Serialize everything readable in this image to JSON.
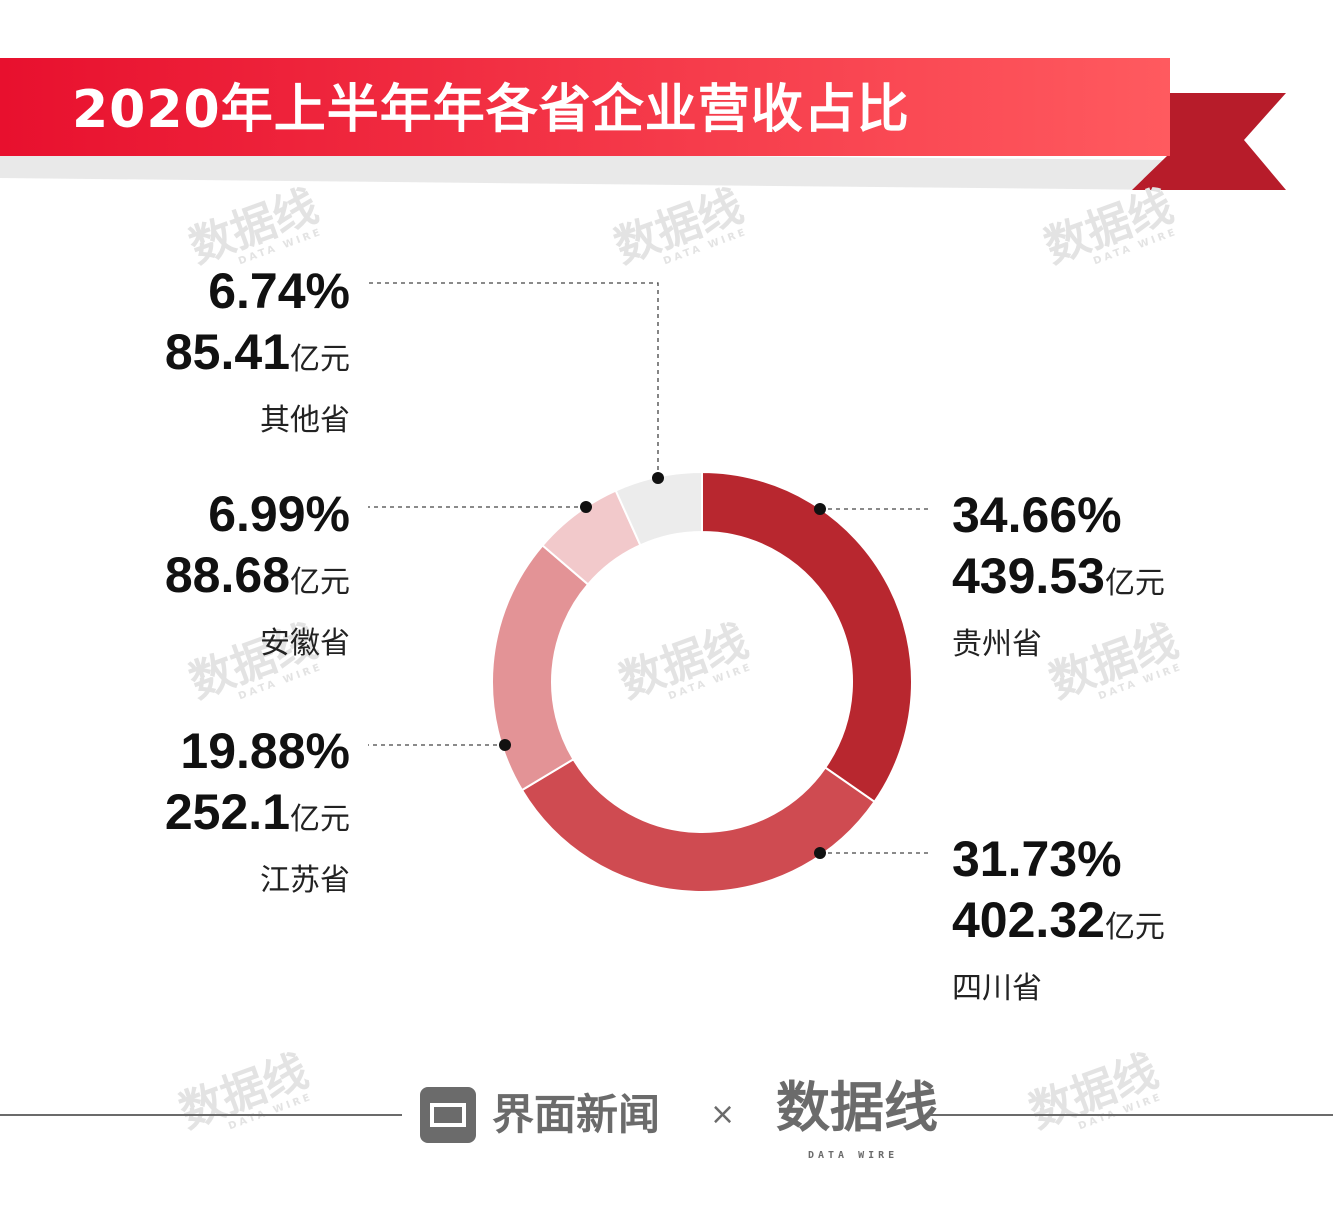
{
  "header": {
    "title": "2020年上半年年各省企业营收占比",
    "colors": {
      "banner_start": "#e8102e",
      "banner_end": "#ff5a5f",
      "ribbon": "#b71c2a",
      "shadow": "#e6e6e6"
    }
  },
  "chart_data": {
    "type": "pie",
    "style": "donut",
    "title": "2020年上半年年各省企业营收占比",
    "unit": "亿元",
    "slices": [
      {
        "name": "贵州省",
        "percent": 34.66,
        "value": 439.53,
        "percent_label": "34.66%",
        "value_label": "439.53",
        "color": "#b8272f"
      },
      {
        "name": "四川省",
        "percent": 31.73,
        "value": 402.32,
        "percent_label": "31.73%",
        "value_label": "402.32",
        "color": "#cf4b51"
      },
      {
        "name": "江苏省",
        "percent": 19.88,
        "value": 252.1,
        "percent_label": "19.88%",
        "value_label": "252.1",
        "color": "#e39396"
      },
      {
        "name": "安徽省",
        "percent": 6.99,
        "value": 88.68,
        "percent_label": "6.99%",
        "value_label": "88.68",
        "color": "#f2c9cb"
      },
      {
        "name": "其他省",
        "percent": 6.74,
        "value": 85.41,
        "percent_label": "6.74%",
        "value_label": "85.41",
        "color": "#ececec"
      }
    ]
  },
  "watermark": {
    "text": "数据线",
    "sub": "DATA WIRE",
    "color": "#e3e3e3"
  },
  "footer": {
    "brand": "界面新闻",
    "separator": "×",
    "partner": "数据线",
    "partner_sub": "DATA WIRE",
    "logo_icon": "jiemian-logo-icon",
    "color": "#6b6b6b"
  }
}
